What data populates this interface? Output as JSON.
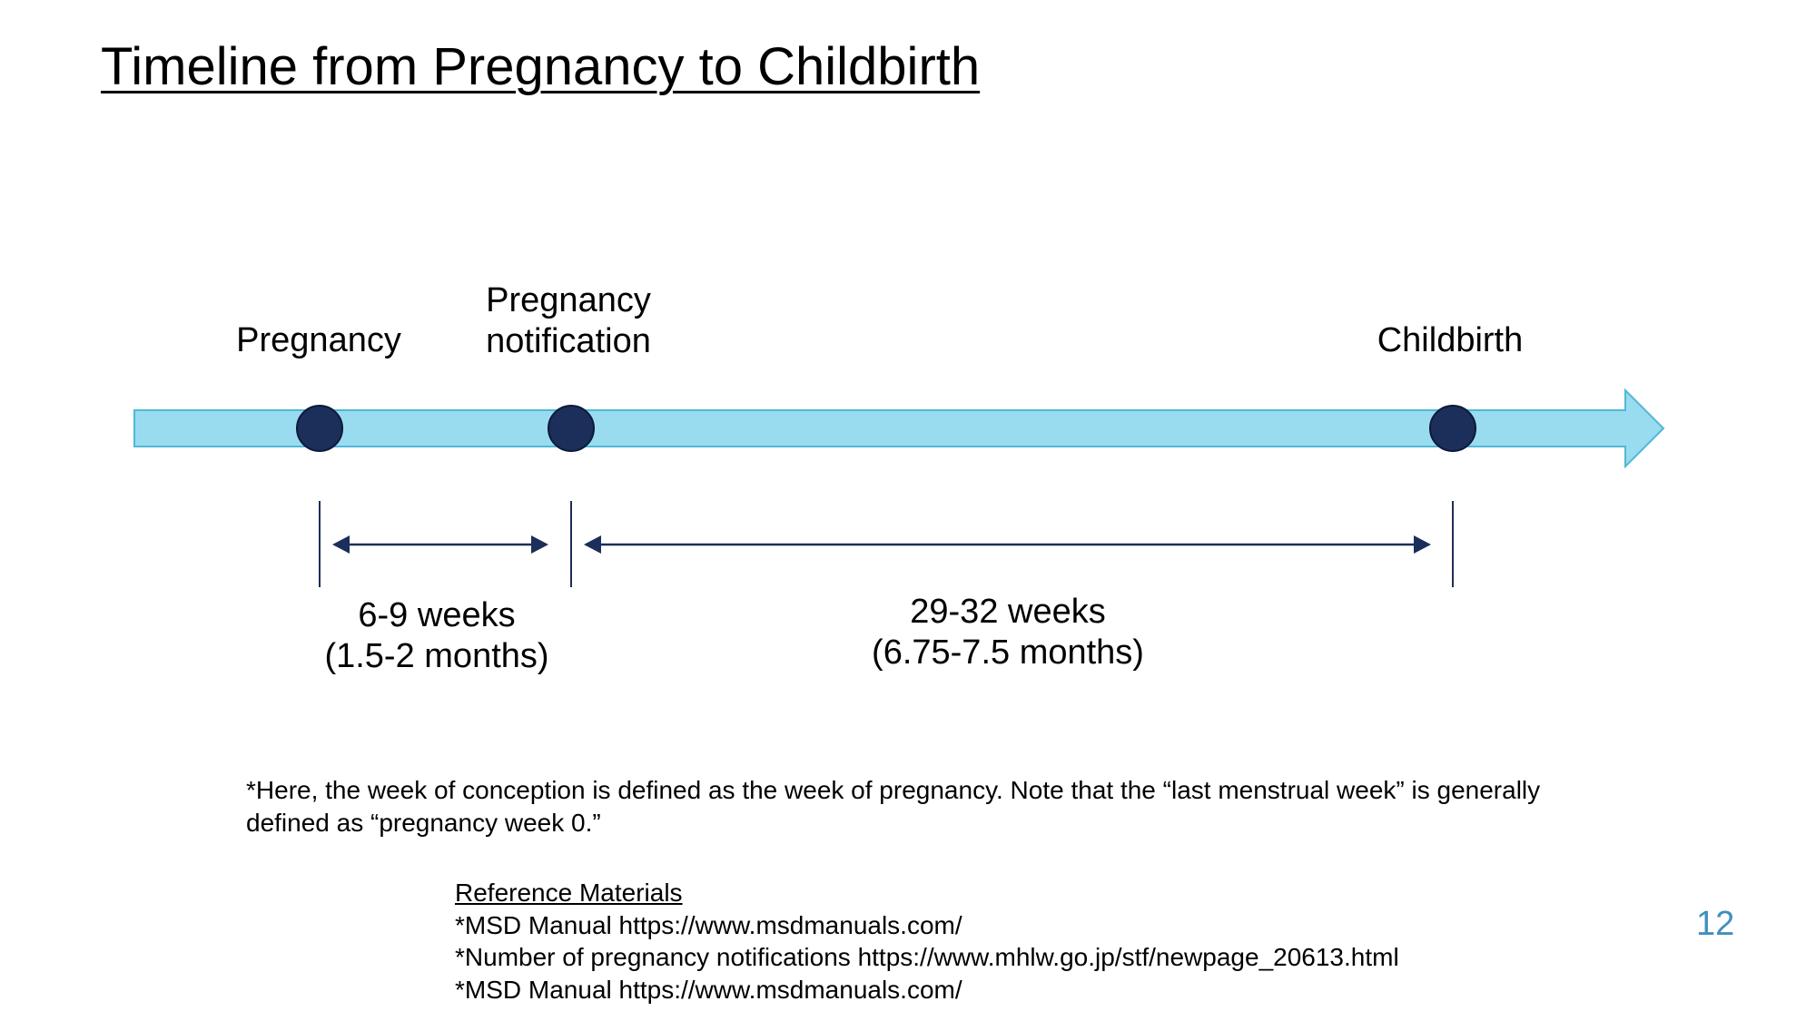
{
  "title": "Timeline from Pregnancy to Childbirth",
  "milestones": [
    {
      "lines": [
        "Pregnancy"
      ]
    },
    {
      "lines": [
        "Pregnancy",
        "notification"
      ]
    },
    {
      "lines": [
        "Childbirth"
      ]
    }
  ],
  "durations": [
    {
      "lines": [
        "6-9 weeks",
        "(1.5-2 months)"
      ]
    },
    {
      "lines": [
        "29-32 weeks",
        "(6.75-7.5 months)"
      ]
    }
  ],
  "note": {
    "lines": [
      "*Here, the week of conception is defined as the week of pregnancy. Note that the “last menstrual week” is generally",
      "defined as “pregnancy week 0.”"
    ]
  },
  "references": {
    "heading": "Reference Materials",
    "items": [
      "*MSD Manual https://www.msdmanuals.com/",
      "*Number of pregnancy notifications https://www.mhlw.go.jp/stf/newpage_20613.html",
      "*MSD Manual https://www.msdmanuals.com/"
    ]
  },
  "page_number": "12",
  "colors": {
    "arrow_fill": "#99dcef",
    "arrow_stroke": "#4fb8d8",
    "milestone_dot": "#1c2e5a",
    "interval_line": "#1c2e5a",
    "page_number": "#3f8fbf"
  }
}
